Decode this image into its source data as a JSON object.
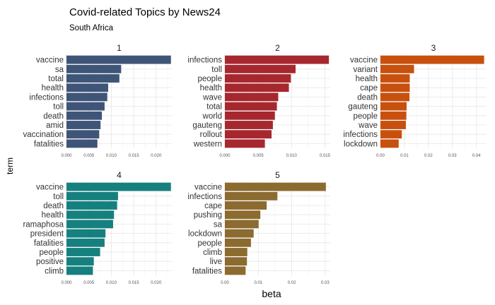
{
  "chart_data": {
    "type": "bar",
    "orientation": "horizontal",
    "title": "Covid-related Topics by News24",
    "subtitle": "South Africa",
    "xlabel": "beta",
    "ylabel": "term",
    "grid": true,
    "legend": "none",
    "panels": [
      {
        "name": "1",
        "color": "#3f5578",
        "xlim": [
          0,
          0.0235
        ],
        "ticks": [
          0,
          0.005,
          0.01,
          0.015,
          0.02
        ],
        "tick_labels": [
          "0.000",
          "0.005",
          "0.010",
          "0.015",
          "0.020"
        ],
        "categories": [
          "vaccine",
          "sa",
          "total",
          "health",
          "infections",
          "toll",
          "death",
          "amid",
          "vaccination",
          "fatalities"
        ],
        "values": [
          0.0233,
          0.0122,
          0.0118,
          0.0093,
          0.0091,
          0.0085,
          0.0079,
          0.0076,
          0.0073,
          0.0069
        ]
      },
      {
        "name": "2",
        "color": "#a6282e",
        "xlim": [
          0,
          0.0158
        ],
        "ticks": [
          0,
          0.005,
          0.01,
          0.015
        ],
        "tick_labels": [
          "0.000",
          "0.005",
          "0.010",
          "0.015"
        ],
        "categories": [
          "infections",
          "toll",
          "people",
          "health",
          "wave",
          "total",
          "world",
          "gauteng",
          "rollout",
          "western"
        ],
        "values": [
          0.0156,
          0.0106,
          0.0099,
          0.0096,
          0.008,
          0.0078,
          0.0075,
          0.0072,
          0.007,
          0.006
        ]
      },
      {
        "name": "3",
        "color": "#c8500e",
        "xlim": [
          0,
          0.0442
        ],
        "ticks": [
          0,
          0.01,
          0.02,
          0.03,
          0.04
        ],
        "tick_labels": [
          "0.00",
          "0.01",
          "0.02",
          "0.03",
          "0.04"
        ],
        "categories": [
          "vaccine",
          "variant",
          "health",
          "cape",
          "death",
          "gauteng",
          "people",
          "wave",
          "infections",
          "lockdown"
        ],
        "values": [
          0.0432,
          0.014,
          0.0122,
          0.0122,
          0.0121,
          0.0109,
          0.0108,
          0.0106,
          0.0089,
          0.0076
        ]
      },
      {
        "name": "4",
        "color": "#16807f",
        "xlim": [
          0,
          0.0235
        ],
        "ticks": [
          0,
          0.005,
          0.01,
          0.015,
          0.02
        ],
        "tick_labels": [
          "0.000",
          "0.005",
          "0.010",
          "0.015",
          "0.020"
        ],
        "categories": [
          "vaccine",
          "toll",
          "death",
          "health",
          "ramaphosa",
          "president",
          "fatalities",
          "people",
          "positive",
          "climb"
        ],
        "values": [
          0.0233,
          0.0115,
          0.0113,
          0.0106,
          0.0104,
          0.0087,
          0.0085,
          0.0075,
          0.0061,
          0.0059
        ]
      },
      {
        "name": "5",
        "color": "#8b6b2f",
        "xlim": [
          0,
          0.0315
        ],
        "ticks": [
          0,
          0.01,
          0.02,
          0.03
        ],
        "tick_labels": [
          "0.00",
          "0.01",
          "0.02",
          "0.03"
        ],
        "categories": [
          "vaccine",
          "infections",
          "cape",
          "pushing",
          "sa",
          "lockdown",
          "people",
          "climb",
          "live",
          "fatalities"
        ],
        "values": [
          0.0302,
          0.0157,
          0.0125,
          0.0106,
          0.0101,
          0.0086,
          0.0078,
          0.0067,
          0.0066,
          0.0062
        ]
      }
    ]
  }
}
